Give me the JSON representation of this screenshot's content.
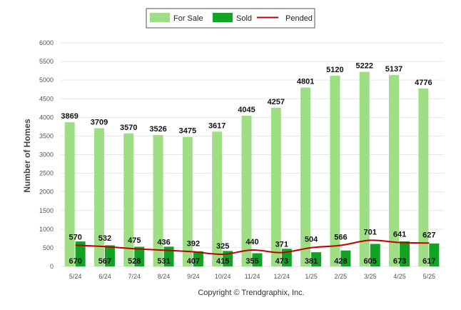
{
  "chart_data": {
    "type": "bar",
    "categories": [
      "5/24",
      "6/24",
      "7/24",
      "8/24",
      "9/24",
      "10/24",
      "11/24",
      "12/24",
      "1/25",
      "2/25",
      "3/25",
      "4/25",
      "5/25"
    ],
    "series": [
      {
        "name": "For Sale",
        "kind": "bar",
        "color": "#9ede84",
        "values": [
          3869,
          3709,
          3570,
          3526,
          3475,
          3617,
          4045,
          4257,
          4801,
          5120,
          5222,
          5137,
          4776
        ]
      },
      {
        "name": "Sold",
        "kind": "bar",
        "color": "#11a324",
        "values": [
          670,
          567,
          528,
          531,
          407,
          415,
          355,
          473,
          381,
          428,
          605,
          673,
          617
        ]
      },
      {
        "name": "Pended",
        "kind": "line",
        "color": "#c00000",
        "values": [
          570,
          532,
          475,
          436,
          392,
          325,
          440,
          371,
          504,
          566,
          701,
          641,
          627
        ]
      }
    ],
    "ylabel": "Number of Homes",
    "yticks": [
      "0",
      "500",
      "1000",
      "1500",
      "2000",
      "2500",
      "3000",
      "3500",
      "4000",
      "4500",
      "5000",
      "5500",
      "6000"
    ],
    "ylim": [
      0,
      6000
    ],
    "grid": true,
    "legend": "top-center"
  },
  "footer": "Copyright © Trendgraphix, Inc."
}
